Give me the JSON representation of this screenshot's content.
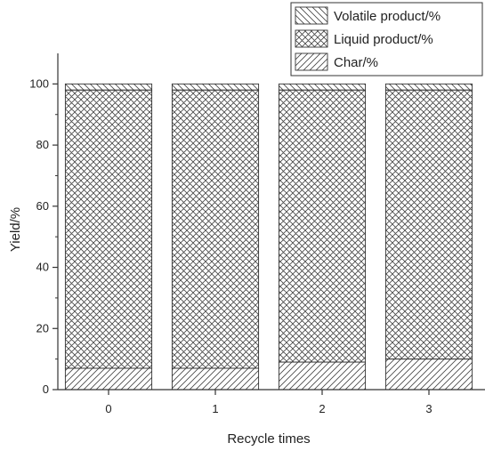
{
  "chart_data": {
    "type": "bar",
    "stacked": true,
    "categories": [
      "0",
      "1",
      "2",
      "3"
    ],
    "series": [
      {
        "name": "Char/%",
        "values": [
          7,
          7,
          9,
          10
        ],
        "pattern": "diagonal-up"
      },
      {
        "name": "Liquid product/%",
        "values": [
          91,
          91,
          89,
          88
        ],
        "pattern": "crosshatch"
      },
      {
        "name": "Volatile product/%",
        "values": [
          2,
          2,
          2,
          2
        ],
        "pattern": "diagonal-down"
      }
    ],
    "xlabel": "Recycle times",
    "ylabel": "Yield/%",
    "ylim": [
      0,
      110
    ],
    "yticks": [
      0,
      20,
      40,
      60,
      80,
      100
    ],
    "grid": false,
    "legend_position": "top-right",
    "legend_order": [
      "Volatile product/%",
      "Liquid product/%",
      "Char/%"
    ],
    "colors": {
      "bar_fill": "#ffffff",
      "stroke": "#333333"
    }
  }
}
